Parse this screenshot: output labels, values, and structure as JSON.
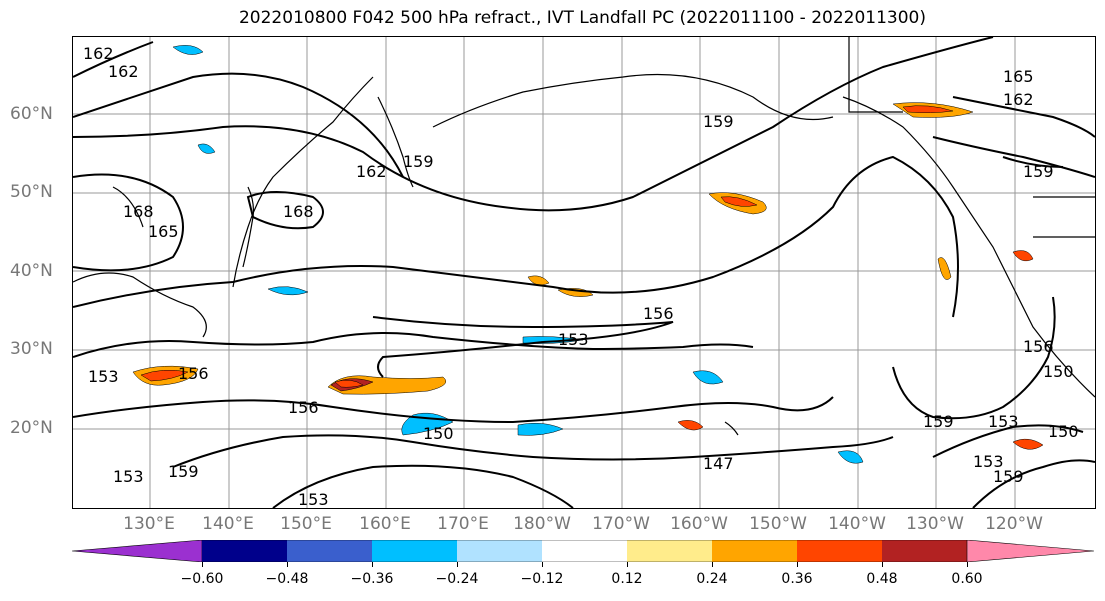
{
  "title": "2022010800 F042 500 hPa refract., IVT Landfall PC (2022011100 - 2022011300)",
  "lat_labels": [
    "60°N",
    "50°N",
    "40°N",
    "30°N",
    "20°N"
  ],
  "lon_labels": [
    "130°E",
    "140°E",
    "150°E",
    "160°E",
    "170°E",
    "180°W",
    "170°W",
    "160°W",
    "150°W",
    "140°W",
    "130°W",
    "120°W"
  ],
  "colorbar": {
    "ticks": [
      "−0.60",
      "−0.48",
      "−0.36",
      "−0.24",
      "−0.12",
      "0.12",
      "0.24",
      "0.36",
      "0.48",
      "0.60"
    ],
    "colors": [
      "#9b30d0",
      "#00008b",
      "#3a5fcd",
      "#00bfff",
      "#b0e2ff",
      "#ffffff",
      "#ffec8b",
      "#ffa500",
      "#ff4500",
      "#b22222",
      "#ff88aa",
      "#ff88aa"
    ]
  },
  "contour_labels": [
    {
      "text": "162"
    },
    {
      "text": "162"
    },
    {
      "text": "159"
    },
    {
      "text": "162"
    },
    {
      "text": "168"
    },
    {
      "text": "168"
    },
    {
      "text": "165"
    },
    {
      "text": "159"
    },
    {
      "text": "165"
    },
    {
      "text": "162"
    },
    {
      "text": "159"
    },
    {
      "text": "156"
    },
    {
      "text": "153"
    },
    {
      "text": "156"
    },
    {
      "text": "153"
    },
    {
      "text": "156"
    },
    {
      "text": "150"
    },
    {
      "text": "147"
    },
    {
      "text": "159"
    },
    {
      "text": "153"
    },
    {
      "text": "153"
    },
    {
      "text": "159"
    },
    {
      "text": "153"
    },
    {
      "text": "150"
    },
    {
      "text": "159"
    },
    {
      "text": "153"
    },
    {
      "text": "150"
    },
    {
      "text": "156"
    }
  ]
}
